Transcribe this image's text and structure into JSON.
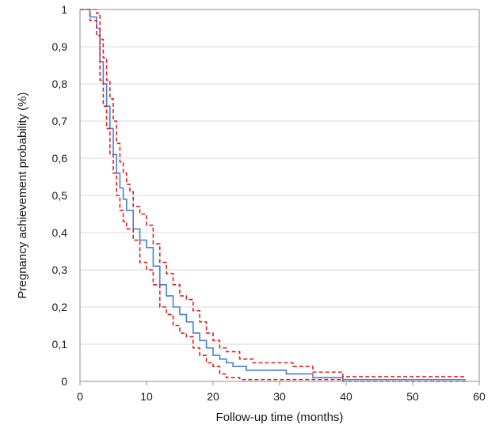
{
  "chart_data": {
    "type": "line",
    "title": "",
    "xlabel": "Follow-up time (months)",
    "ylabel": "Pregnancy achievement probability (%)",
    "xlim": [
      0,
      60
    ],
    "ylim": [
      0,
      1
    ],
    "x_ticks": [
      0,
      10,
      20,
      30,
      40,
      50,
      60
    ],
    "x_tick_labels": [
      "0",
      "10",
      "20",
      "30",
      "40",
      "50",
      "60"
    ],
    "y_ticks": [
      0,
      0.1,
      0.2,
      0.3,
      0.4,
      0.5,
      0.6,
      0.7,
      0.8,
      0.9,
      1
    ],
    "y_tick_labels": [
      "0",
      "0,1",
      "0,2",
      "0,3",
      "0,4",
      "0,5",
      "0,6",
      "0,7",
      "0,8",
      "0,9",
      "1"
    ],
    "grid": "horizontal",
    "step": true,
    "series": [
      {
        "role": "estimate",
        "color": "#4a7fd4",
        "dash": "solid",
        "x": [
          0,
          1.5,
          2.5,
          3,
          3.5,
          4,
          4.5,
          5,
          5.5,
          6,
          6.5,
          7,
          8,
          9,
          10,
          11,
          12,
          13,
          14,
          15,
          16,
          17,
          18,
          19,
          20,
          21,
          22,
          23,
          25,
          31,
          33,
          35,
          39.5,
          58
        ],
        "y": [
          1,
          0.98,
          0.95,
          0.86,
          0.8,
          0.74,
          0.68,
          0.61,
          0.56,
          0.52,
          0.49,
          0.46,
          0.41,
          0.38,
          0.36,
          0.31,
          0.26,
          0.23,
          0.2,
          0.18,
          0.16,
          0.13,
          0.11,
          0.09,
          0.07,
          0.06,
          0.05,
          0.04,
          0.03,
          0.02,
          0.02,
          0.01,
          0.005,
          0.005
        ]
      },
      {
        "role": "upper-ci",
        "color": "#e02020",
        "dash": "dashed",
        "x": [
          0,
          1,
          2.5,
          3,
          3.5,
          4,
          4.5,
          5,
          5.5,
          6,
          6.5,
          7,
          7.5,
          8,
          9,
          10,
          11,
          12,
          13,
          14,
          15,
          16,
          17,
          18,
          19,
          20,
          21,
          22,
          24,
          26,
          32,
          35,
          39.5,
          58
        ],
        "y": [
          1,
          1,
          0.99,
          0.92,
          0.87,
          0.81,
          0.76,
          0.7,
          0.64,
          0.59,
          0.56,
          0.53,
          0.51,
          0.47,
          0.45,
          0.42,
          0.37,
          0.32,
          0.29,
          0.26,
          0.23,
          0.22,
          0.19,
          0.16,
          0.13,
          0.11,
          0.09,
          0.08,
          0.06,
          0.05,
          0.04,
          0.025,
          0.013,
          0.013
        ]
      },
      {
        "role": "lower-ci",
        "color": "#e02020",
        "dash": "dashed",
        "x": [
          0,
          1.5,
          2.5,
          3,
          3.5,
          4,
          4.5,
          5,
          5.5,
          6,
          6.5,
          7,
          8,
          9,
          10,
          11,
          12,
          13,
          14,
          15,
          16,
          17,
          18,
          19,
          20,
          21,
          22,
          24,
          39.5,
          58
        ],
        "y": [
          1,
          0.97,
          0.93,
          0.81,
          0.74,
          0.68,
          0.61,
          0.56,
          0.5,
          0.46,
          0.43,
          0.41,
          0.38,
          0.32,
          0.3,
          0.26,
          0.2,
          0.18,
          0.15,
          0.13,
          0.12,
          0.09,
          0.07,
          0.05,
          0.04,
          0.02,
          0.01,
          0.005,
          0,
          0
        ]
      }
    ]
  }
}
